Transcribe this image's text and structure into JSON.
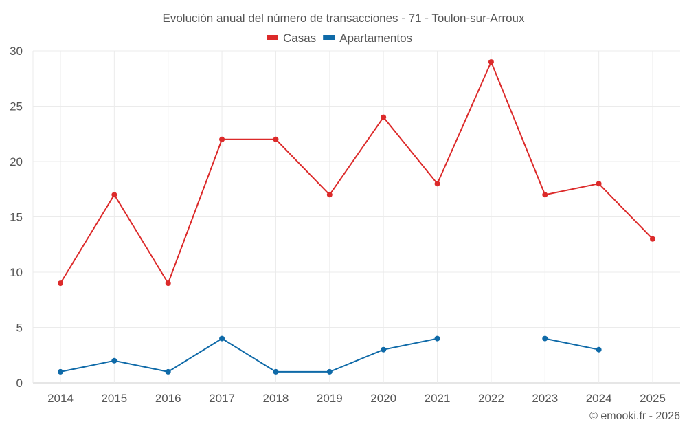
{
  "chart_data": {
    "type": "line",
    "title": "Evolución anual del número de transacciones - 71 - Toulon-sur-Arroux",
    "xlabel": "",
    "ylabel": "",
    "categories": [
      "2014",
      "2015",
      "2016",
      "2017",
      "2018",
      "2019",
      "2020",
      "2021",
      "2022",
      "2023",
      "2024",
      "2025"
    ],
    "ylim": [
      0,
      30
    ],
    "yticks": [
      0,
      5,
      10,
      15,
      20,
      25,
      30
    ],
    "grid": true,
    "legend_position": "top-center",
    "series": [
      {
        "name": "Casas",
        "color": "#dc2a2a",
        "values": [
          9,
          17,
          9,
          22,
          22,
          17,
          24,
          18,
          29,
          17,
          18,
          13
        ]
      },
      {
        "name": "Apartamentos",
        "color": "#0f6aa8",
        "values": [
          1,
          2,
          1,
          4,
          1,
          1,
          3,
          4,
          null,
          4,
          3,
          null
        ]
      }
    ],
    "credit": "© emooki.fr - 2026"
  }
}
